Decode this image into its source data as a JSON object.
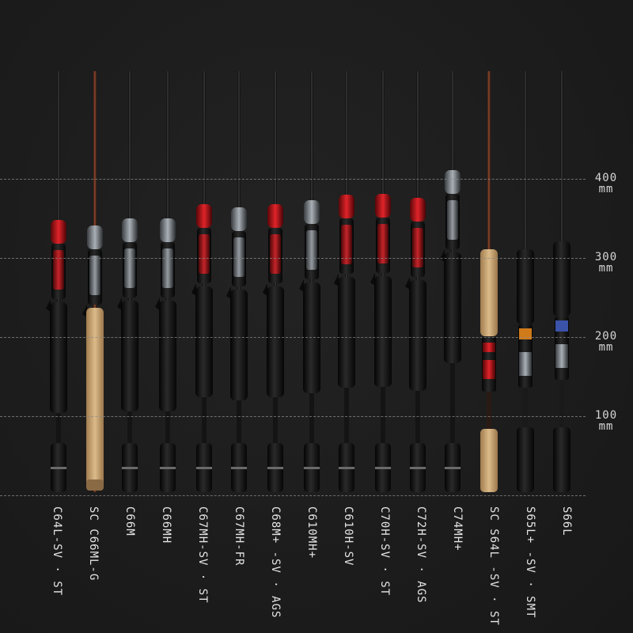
{
  "scale": {
    "unit": "mm",
    "marks": [
      {
        "value": "400",
        "unit": "mm"
      },
      {
        "value": "300",
        "unit": "mm"
      },
      {
        "value": "200",
        "unit": "mm"
      },
      {
        "value": "100",
        "unit": "mm"
      }
    ]
  },
  "rods": [
    {
      "label": "C64L-SV · ST"
    },
    {
      "label": "SC C66ML-G"
    },
    {
      "label": "C66M"
    },
    {
      "label": "C66MH"
    },
    {
      "label": "C67MH-SV · ST"
    },
    {
      "label": "C67MH-FR"
    },
    {
      "label": "C68M+ -SV · AGS"
    },
    {
      "label": "C610MH+"
    },
    {
      "label": "C610H-SV"
    },
    {
      "label": "C70H-SV · ST"
    },
    {
      "label": "C72H-SV · AGS"
    },
    {
      "label": "C74MH+"
    },
    {
      "label": "SC S64L -SV · ST"
    },
    {
      "label": "S65L+ -SV · SMT"
    },
    {
      "label": "S66L"
    }
  ],
  "colors": {
    "background": "#1e1e1e",
    "grip_black": "#0f0f0f",
    "cork": "#c9a472",
    "accent_red": "#c4141c",
    "silver": "#7d8388",
    "blank": "#151515"
  }
}
